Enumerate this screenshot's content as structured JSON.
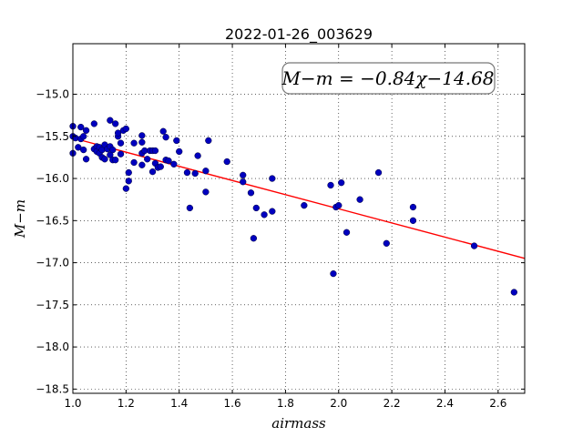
{
  "chart_data": {
    "type": "scatter",
    "title": "2022-01-26_003629",
    "xlabel": "airmass",
    "ylabel": "M−m",
    "xlim": [
      1.0,
      2.7
    ],
    "ylim": [
      -18.55,
      -14.4
    ],
    "x_ticks": [
      1.0,
      1.2,
      1.4,
      1.6,
      1.8,
      2.0,
      2.2,
      2.4,
      2.6
    ],
    "x_tick_labels": [
      "1.0",
      "1.2",
      "1.4",
      "1.6",
      "1.8",
      "2.0",
      "2.2",
      "2.4",
      "2.6"
    ],
    "y_ticks": [
      -15.0,
      -15.5,
      -16.0,
      -16.5,
      -17.0,
      -17.5,
      -18.0,
      -18.5
    ],
    "y_tick_labels": [
      "−15.0",
      "−15.5",
      "−16.0",
      "−16.5",
      "−17.0",
      "−17.5",
      "−18.0",
      "−18.5"
    ],
    "grid": true,
    "annotation": "M−m = −0.84χ−14.68",
    "fit_line": {
      "slope": -0.84,
      "intercept": -14.68,
      "color": "#ff0000"
    },
    "point_color": "#0000bf",
    "points": [
      [
        1.0,
        -15.38
      ],
      [
        1.0,
        -15.5
      ],
      [
        1.0,
        -15.7
      ],
      [
        1.01,
        -15.52
      ],
      [
        1.02,
        -15.63
      ],
      [
        1.03,
        -15.39
      ],
      [
        1.03,
        -15.53
      ],
      [
        1.04,
        -15.5
      ],
      [
        1.04,
        -15.66
      ],
      [
        1.05,
        -15.43
      ],
      [
        1.05,
        -15.77
      ],
      [
        1.08,
        -15.35
      ],
      [
        1.08,
        -15.65
      ],
      [
        1.09,
        -15.62
      ],
      [
        1.09,
        -15.68
      ],
      [
        1.1,
        -15.63
      ],
      [
        1.1,
        -15.7
      ],
      [
        1.11,
        -15.66
      ],
      [
        1.11,
        -15.75
      ],
      [
        1.12,
        -15.6
      ],
      [
        1.12,
        -15.77
      ],
      [
        1.13,
        -15.65
      ],
      [
        1.14,
        -15.31
      ],
      [
        1.14,
        -15.62
      ],
      [
        1.14,
        -15.72
      ],
      [
        1.15,
        -15.78
      ],
      [
        1.15,
        -15.66
      ],
      [
        1.16,
        -15.35
      ],
      [
        1.16,
        -15.78
      ],
      [
        1.17,
        -15.5
      ],
      [
        1.17,
        -15.46
      ],
      [
        1.18,
        -15.58
      ],
      [
        1.18,
        -15.71
      ],
      [
        1.19,
        -15.43
      ],
      [
        1.2,
        -15.41
      ],
      [
        1.2,
        -16.12
      ],
      [
        1.21,
        -15.93
      ],
      [
        1.21,
        -16.03
      ],
      [
        1.23,
        -15.58
      ],
      [
        1.23,
        -15.81
      ],
      [
        1.26,
        -15.49
      ],
      [
        1.26,
        -15.57
      ],
      [
        1.26,
        -15.7
      ],
      [
        1.26,
        -15.84
      ],
      [
        1.27,
        -15.67
      ],
      [
        1.28,
        -15.77
      ],
      [
        1.29,
        -15.67
      ],
      [
        1.3,
        -15.67
      ],
      [
        1.3,
        -15.92
      ],
      [
        1.31,
        -15.67
      ],
      [
        1.31,
        -15.82
      ],
      [
        1.32,
        -15.87
      ],
      [
        1.33,
        -15.86
      ],
      [
        1.34,
        -15.44
      ],
      [
        1.35,
        -15.51
      ],
      [
        1.35,
        -15.78
      ],
      [
        1.36,
        -15.79
      ],
      [
        1.38,
        -15.83
      ],
      [
        1.39,
        -15.55
      ],
      [
        1.4,
        -15.68
      ],
      [
        1.43,
        -15.93
      ],
      [
        1.44,
        -16.35
      ],
      [
        1.46,
        -15.94
      ],
      [
        1.47,
        -15.73
      ],
      [
        1.5,
        -15.91
      ],
      [
        1.5,
        -16.16
      ],
      [
        1.51,
        -15.55
      ],
      [
        1.58,
        -15.8
      ],
      [
        1.64,
        -15.96
      ],
      [
        1.64,
        -16.04
      ],
      [
        1.67,
        -16.17
      ],
      [
        1.68,
        -16.71
      ],
      [
        1.69,
        -16.35
      ],
      [
        1.72,
        -16.43
      ],
      [
        1.75,
        -16.0
      ],
      [
        1.75,
        -16.39
      ],
      [
        1.87,
        -16.32
      ],
      [
        1.97,
        -16.08
      ],
      [
        1.98,
        -17.13
      ],
      [
        1.99,
        -16.34
      ],
      [
        2.0,
        -16.32
      ],
      [
        2.01,
        -16.05
      ],
      [
        2.03,
        -16.64
      ],
      [
        2.08,
        -16.25
      ],
      [
        2.15,
        -15.93
      ],
      [
        2.18,
        -16.77
      ],
      [
        2.28,
        -16.34
      ],
      [
        2.28,
        -16.5
      ],
      [
        2.51,
        -16.8
      ],
      [
        2.66,
        -17.35
      ]
    ]
  }
}
